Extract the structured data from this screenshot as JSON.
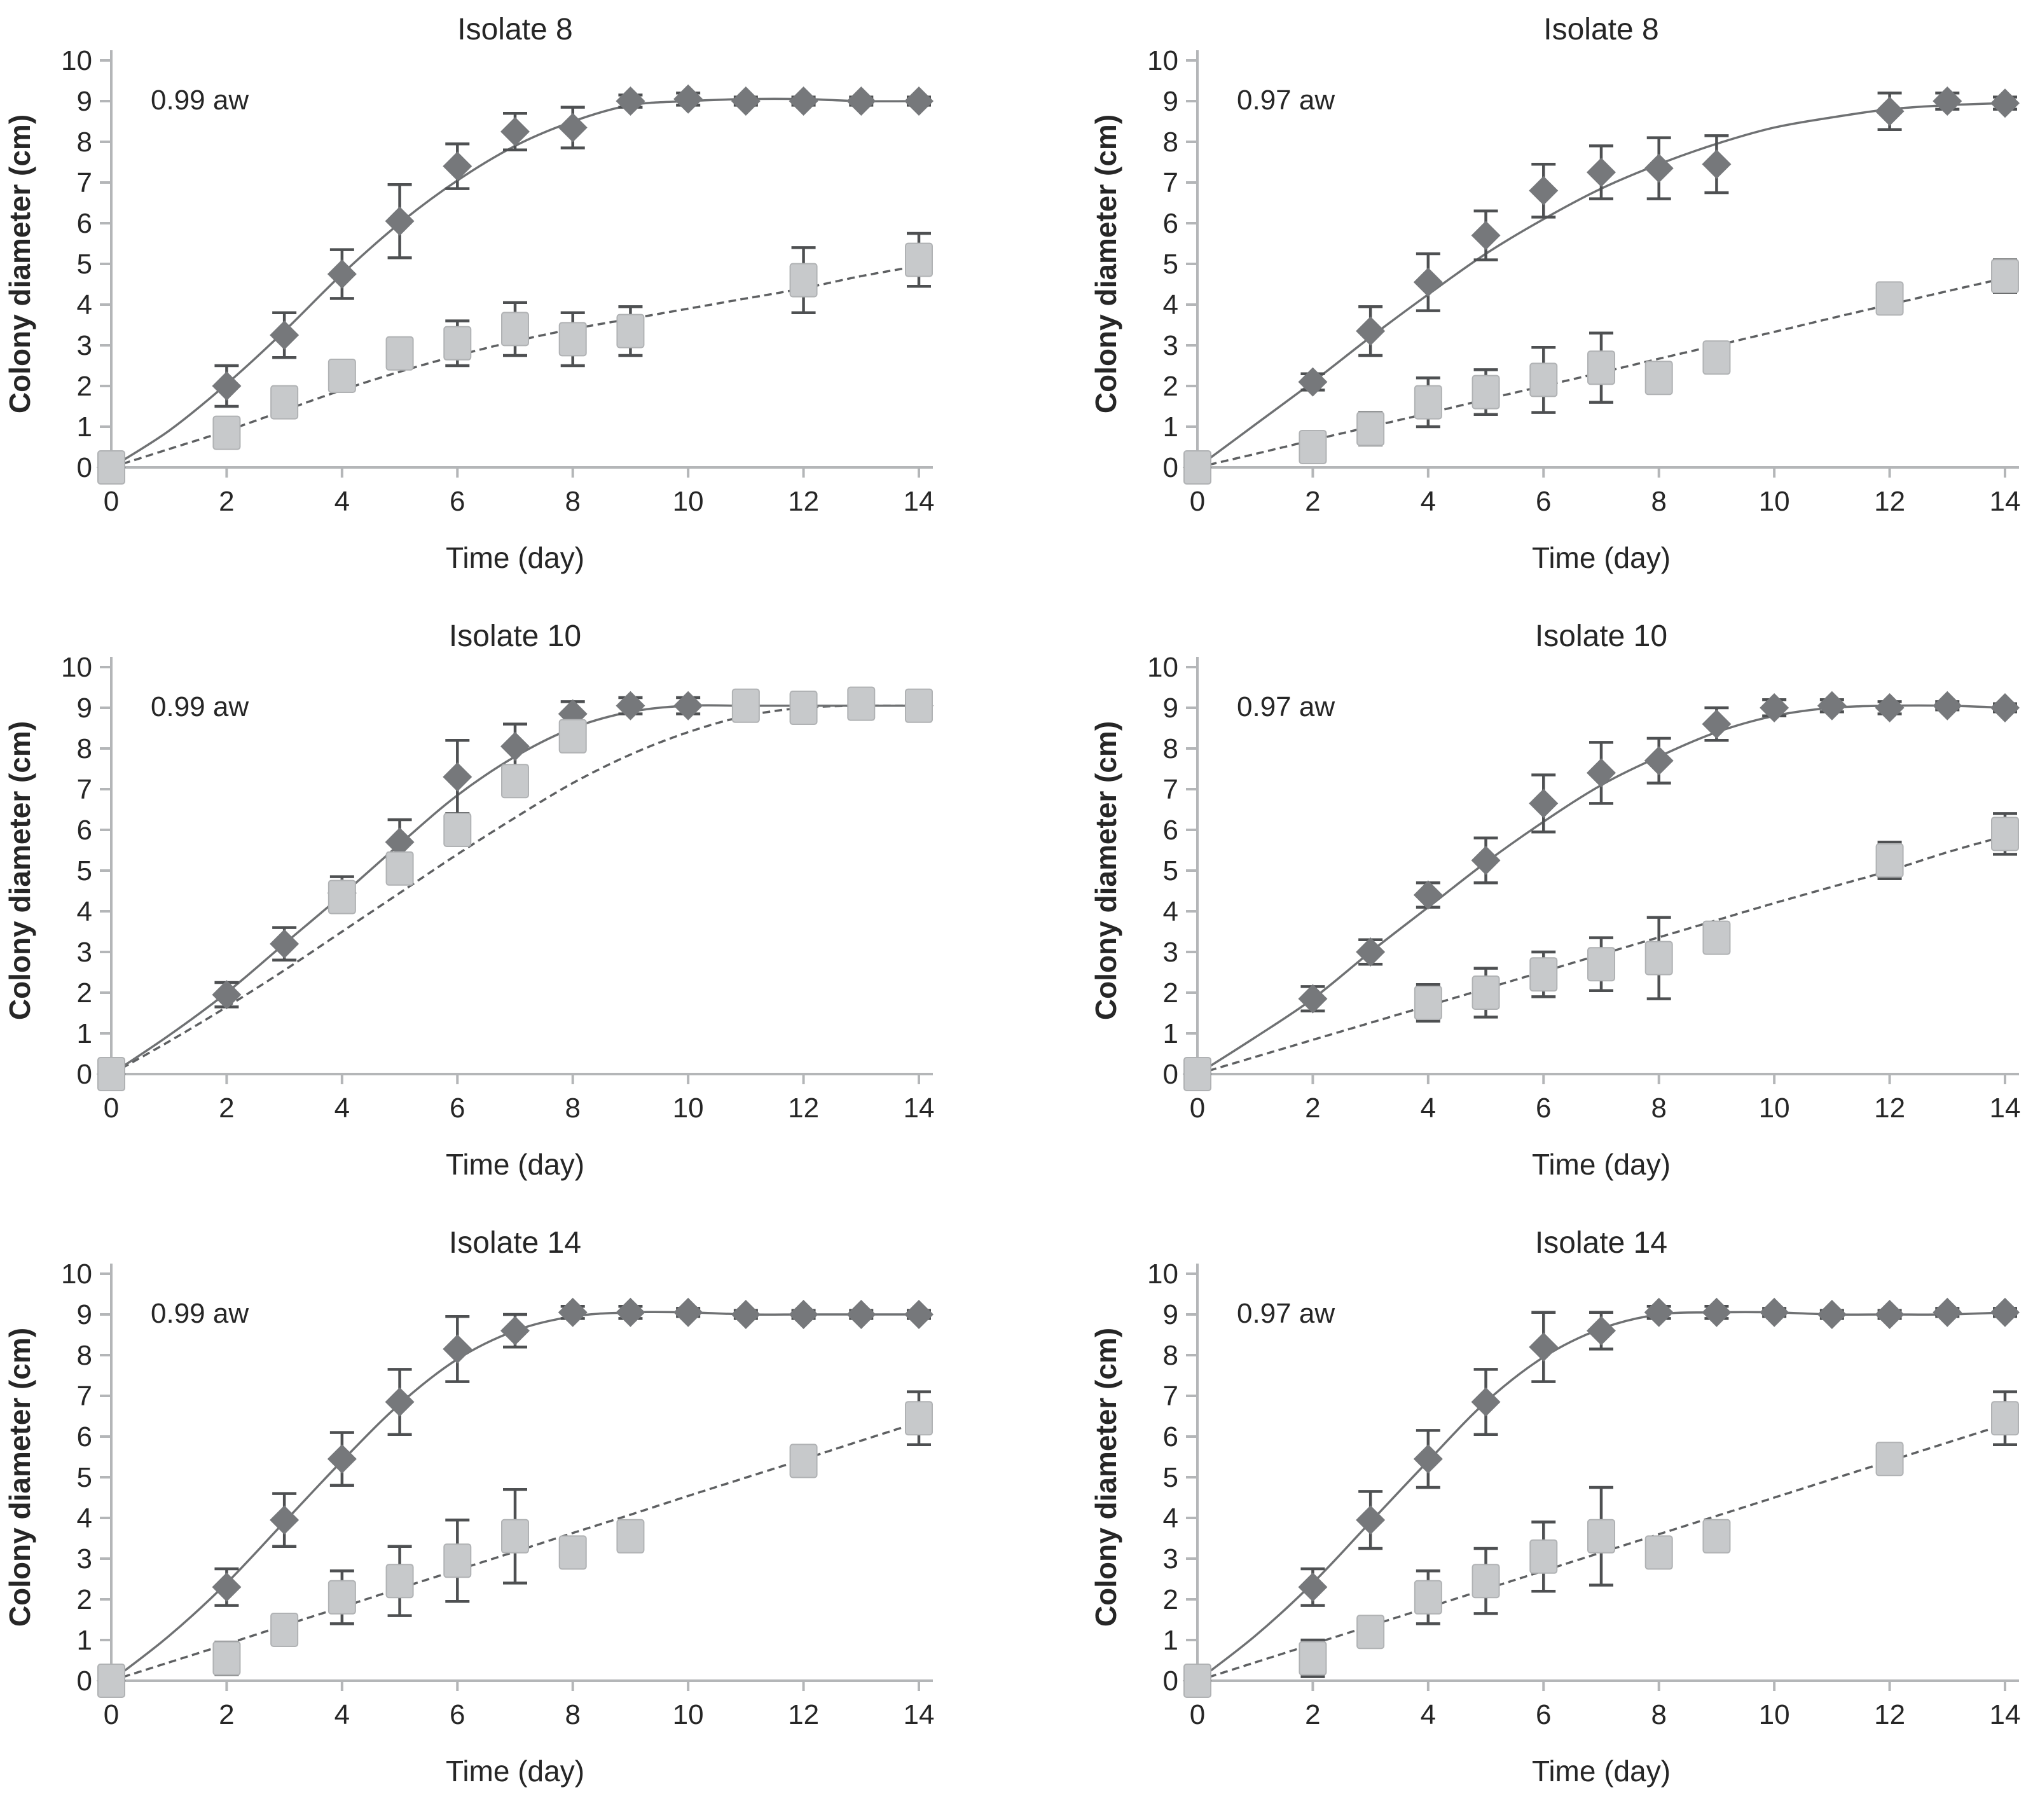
{
  "figure": {
    "x_ticks": [
      0,
      2,
      4,
      6,
      8,
      10,
      12,
      14
    ],
    "y_ticks": [
      0,
      1,
      2,
      3,
      4,
      5,
      6,
      7,
      8,
      9,
      10
    ]
  },
  "colors": {
    "diamond_fill": "#76787b",
    "square_fill": "#c7c9cb",
    "square_stroke": "#b0b2b4",
    "error_bar": "#4e5052",
    "fit_line_diamond": "#6f7173",
    "fit_line_square": "#5e6062",
    "axis": "#b4b6b8",
    "text": "#262626"
  },
  "chart_data": [
    {
      "type": "scatter",
      "title": "Isolate 8",
      "annotation": "0.99 aw",
      "xlabel": "Time (day)",
      "ylabel": "Colony diameter (cm)",
      "xlim": [
        0,
        14
      ],
      "ylim": [
        0,
        10
      ],
      "series": [
        {
          "name": "diamond-series",
          "marker": "diamond",
          "line": "solid",
          "x": [
            0,
            2,
            3,
            4,
            5,
            6,
            7,
            8,
            9,
            10,
            11,
            12,
            13,
            14
          ],
          "y": [
            0,
            2.0,
            3.25,
            4.75,
            6.05,
            7.4,
            8.25,
            8.35,
            9.0,
            9.05,
            9.0,
            9.0,
            9.0,
            9.0
          ],
          "err": [
            0,
            0.5,
            0.55,
            0.6,
            0.9,
            0.55,
            0.45,
            0.5,
            0.15,
            0.15,
            0.1,
            0.1,
            0.1,
            0.1
          ],
          "fit_x": [
            0,
            1,
            2,
            3,
            4,
            5,
            6,
            7,
            8,
            9,
            10,
            11,
            12,
            13,
            14
          ],
          "fit_y": [
            0,
            0.9,
            2.05,
            3.35,
            4.75,
            6.0,
            7.05,
            7.9,
            8.5,
            8.9,
            9.0,
            9.05,
            9.05,
            9.0,
            9.0
          ]
        },
        {
          "name": "square-series",
          "marker": "square",
          "line": "dashed",
          "x": [
            0,
            2,
            3,
            4,
            5,
            6,
            7,
            8,
            9,
            12,
            14
          ],
          "y": [
            0,
            0.85,
            1.6,
            2.25,
            2.8,
            3.05,
            3.4,
            3.15,
            3.35,
            4.6,
            5.1
          ],
          "err": [
            0,
            0.35,
            0.25,
            0.35,
            0.3,
            0.55,
            0.65,
            0.65,
            0.6,
            0.8,
            0.65
          ],
          "fit_x": [
            0,
            1,
            2,
            3,
            4,
            5,
            6,
            7,
            8,
            9,
            10,
            11,
            12,
            13,
            14
          ],
          "fit_y": [
            0,
            0.45,
            0.9,
            1.4,
            1.9,
            2.35,
            2.75,
            3.1,
            3.4,
            3.65,
            3.9,
            4.15,
            4.4,
            4.7,
            4.95
          ]
        }
      ]
    },
    {
      "type": "scatter",
      "title": "Isolate 8",
      "annotation": "0.97 aw",
      "xlabel": "Time (day)",
      "ylabel": "Colony diameter (cm)",
      "xlim": [
        0,
        14
      ],
      "ylim": [
        0,
        10
      ],
      "series": [
        {
          "name": "diamond-series",
          "marker": "diamond",
          "line": "solid",
          "x": [
            0,
            2,
            3,
            4,
            5,
            6,
            7,
            8,
            9,
            12,
            13,
            14
          ],
          "y": [
            0,
            2.1,
            3.35,
            4.55,
            5.7,
            6.8,
            7.25,
            7.35,
            7.45,
            8.75,
            9.0,
            8.95
          ],
          "err": [
            0,
            0.2,
            0.6,
            0.7,
            0.6,
            0.65,
            0.65,
            0.75,
            0.7,
            0.45,
            0.2,
            0.15
          ],
          "fit_x": [
            0,
            1,
            2,
            3,
            4,
            5,
            6,
            7,
            8,
            9,
            10,
            11,
            12,
            13,
            14
          ],
          "fit_y": [
            0,
            1.05,
            2.1,
            3.2,
            4.25,
            5.25,
            6.1,
            6.85,
            7.45,
            7.95,
            8.35,
            8.6,
            8.8,
            8.9,
            8.95
          ]
        },
        {
          "name": "square-series",
          "marker": "square",
          "line": "dashed",
          "x": [
            0,
            2,
            3,
            4,
            5,
            6,
            7,
            8,
            9,
            12,
            14
          ],
          "y": [
            0,
            0.5,
            0.95,
            1.6,
            1.85,
            2.15,
            2.45,
            2.2,
            2.7,
            4.15,
            4.7
          ],
          "err": [
            0,
            0.2,
            0.4,
            0.6,
            0.55,
            0.8,
            0.85,
            0.15,
            0.25,
            0.35,
            0.4
          ],
          "fit_x": [
            0,
            1,
            2,
            3,
            4,
            5,
            6,
            7,
            8,
            9,
            10,
            11,
            12,
            13,
            14
          ],
          "fit_y": [
            0,
            0.33,
            0.67,
            1.0,
            1.33,
            1.67,
            2.0,
            2.33,
            2.67,
            3.0,
            3.33,
            3.67,
            4.0,
            4.33,
            4.65
          ]
        }
      ]
    },
    {
      "type": "scatter",
      "title": "Isolate 10",
      "annotation": "0.99 aw",
      "xlabel": "Time (day)",
      "ylabel": "Colony diameter (cm)",
      "xlim": [
        0,
        14
      ],
      "ylim": [
        0,
        10
      ],
      "series": [
        {
          "name": "diamond-series",
          "marker": "diamond",
          "line": "solid",
          "x": [
            0,
            2,
            3,
            4,
            5,
            6,
            7,
            8,
            9,
            10,
            11,
            12,
            13,
            14
          ],
          "y": [
            0,
            1.95,
            3.2,
            4.45,
            5.7,
            7.3,
            8.05,
            8.85,
            9.05,
            9.05,
            9.05,
            9.05,
            9.05,
            9.05
          ],
          "err": [
            0,
            0.3,
            0.4,
            0.4,
            0.55,
            0.9,
            0.55,
            0.3,
            0.2,
            0.2,
            0.1,
            0.1,
            0.1,
            0.1
          ],
          "fit_x": [
            0,
            1,
            2,
            3,
            4,
            5,
            6,
            7,
            8,
            9,
            10,
            11,
            12,
            13,
            14
          ],
          "fit_y": [
            0,
            0.95,
            2.0,
            3.2,
            4.4,
            5.65,
            6.85,
            7.8,
            8.5,
            8.9,
            9.05,
            9.05,
            9.05,
            9.05,
            9.05
          ]
        },
        {
          "name": "square-series",
          "marker": "square",
          "line": "dashed",
          "x": [
            0,
            4,
            5,
            6,
            7,
            8,
            11,
            12,
            13,
            14
          ],
          "y": [
            0,
            4.35,
            5.05,
            6.0,
            7.2,
            8.3,
            9.05,
            9.0,
            9.1,
            9.05
          ],
          "err": [
            0,
            0.35,
            0.2,
            0.35,
            0.35,
            0.3,
            0.15,
            0.15,
            0.1,
            0.15
          ],
          "fit_x": [
            0,
            1,
            2,
            3,
            4,
            5,
            6,
            7,
            8,
            9,
            10,
            11,
            12,
            13,
            14
          ],
          "fit_y": [
            0,
            0.8,
            1.65,
            2.55,
            3.5,
            4.45,
            5.4,
            6.3,
            7.15,
            7.85,
            8.4,
            8.8,
            9.0,
            9.05,
            9.05
          ]
        }
      ]
    },
    {
      "type": "scatter",
      "title": "Isolate 10",
      "annotation": "0.97 aw",
      "xlabel": "Time (day)",
      "ylabel": "Colony diameter (cm)",
      "xlim": [
        0,
        14
      ],
      "ylim": [
        0,
        10
      ],
      "series": [
        {
          "name": "diamond-series",
          "marker": "diamond",
          "line": "solid",
          "x": [
            0,
            2,
            3,
            4,
            5,
            6,
            7,
            8,
            9,
            10,
            11,
            12,
            13,
            14
          ],
          "y": [
            0,
            1.85,
            3.0,
            4.4,
            5.25,
            6.65,
            7.4,
            7.7,
            8.6,
            9.0,
            9.05,
            9.0,
            9.05,
            9.0
          ],
          "err": [
            0,
            0.3,
            0.3,
            0.3,
            0.55,
            0.7,
            0.75,
            0.55,
            0.4,
            0.2,
            0.15,
            0.15,
            0.1,
            0.1
          ],
          "fit_x": [
            0,
            1,
            2,
            3,
            4,
            5,
            6,
            7,
            8,
            9,
            10,
            11,
            12,
            13,
            14
          ],
          "fit_y": [
            0,
            0.9,
            1.85,
            3.0,
            4.1,
            5.2,
            6.2,
            7.1,
            7.8,
            8.4,
            8.8,
            9.0,
            9.05,
            9.05,
            9.0
          ]
        },
        {
          "name": "square-series",
          "marker": "square",
          "line": "dashed",
          "x": [
            0,
            4,
            5,
            6,
            7,
            8,
            9,
            12,
            14
          ],
          "y": [
            0,
            1.75,
            2.0,
            2.45,
            2.7,
            2.85,
            3.35,
            5.25,
            5.9
          ],
          "err": [
            0,
            0.45,
            0.6,
            0.55,
            0.65,
            1.0,
            0.35,
            0.45,
            0.5
          ],
          "fit_x": [
            0,
            1,
            2,
            3,
            4,
            5,
            6,
            7,
            8,
            9,
            10,
            11,
            12,
            13,
            14
          ],
          "fit_y": [
            0,
            0.42,
            0.84,
            1.26,
            1.68,
            2.1,
            2.52,
            2.94,
            3.36,
            3.78,
            4.2,
            4.6,
            5.0,
            5.45,
            5.85
          ]
        }
      ]
    },
    {
      "type": "scatter",
      "title": "Isolate 14",
      "annotation": "0.99 aw",
      "xlabel": "Time (day)",
      "ylabel": "Colony diameter (cm)",
      "xlim": [
        0,
        14
      ],
      "ylim": [
        0,
        10
      ],
      "series": [
        {
          "name": "diamond-series",
          "marker": "diamond",
          "line": "solid",
          "x": [
            0,
            2,
            3,
            4,
            5,
            6,
            7,
            8,
            9,
            10,
            11,
            12,
            13,
            14
          ],
          "y": [
            0,
            2.3,
            3.95,
            5.45,
            6.85,
            8.15,
            8.6,
            9.05,
            9.05,
            9.05,
            9.0,
            9.0,
            9.0,
            9.0
          ],
          "err": [
            0,
            0.45,
            0.65,
            0.65,
            0.8,
            0.8,
            0.4,
            0.15,
            0.15,
            0.1,
            0.1,
            0.1,
            0.1,
            0.1
          ],
          "fit_x": [
            0,
            1,
            2,
            3,
            4,
            5,
            6,
            7,
            8,
            9,
            10,
            11,
            12,
            13,
            14
          ],
          "fit_y": [
            0,
            1.1,
            2.4,
            3.9,
            5.4,
            6.8,
            7.9,
            8.6,
            8.95,
            9.05,
            9.05,
            9.0,
            9.0,
            9.0,
            9.0
          ]
        },
        {
          "name": "square-series",
          "marker": "square",
          "line": "dashed",
          "x": [
            0,
            2,
            3,
            4,
            5,
            6,
            7,
            8,
            9,
            12,
            14
          ],
          "y": [
            0,
            0.55,
            1.25,
            2.05,
            2.45,
            2.95,
            3.55,
            3.15,
            3.55,
            5.4,
            6.45
          ],
          "err": [
            0,
            0.4,
            0.35,
            0.65,
            0.85,
            1.0,
            1.15,
            0.2,
            0.15,
            0.25,
            0.65
          ],
          "fit_x": [
            0,
            1,
            2,
            3,
            4,
            5,
            6,
            7,
            8,
            9,
            10,
            11,
            12,
            13,
            14
          ],
          "fit_y": [
            0,
            0.45,
            0.9,
            1.36,
            1.81,
            2.27,
            2.72,
            3.17,
            3.63,
            4.08,
            4.54,
            4.99,
            5.44,
            5.9,
            6.35
          ]
        }
      ]
    },
    {
      "type": "scatter",
      "title": "Isolate 14",
      "annotation": "0.97 aw",
      "xlabel": "Time (day)",
      "ylabel": "Colony diameter (cm)",
      "xlim": [
        0,
        14
      ],
      "ylim": [
        0,
        10
      ],
      "series": [
        {
          "name": "diamond-series",
          "marker": "diamond",
          "line": "solid",
          "x": [
            0,
            2,
            3,
            4,
            5,
            6,
            7,
            8,
            9,
            10,
            11,
            12,
            13,
            14
          ],
          "y": [
            0,
            2.3,
            3.95,
            5.45,
            6.85,
            8.2,
            8.6,
            9.05,
            9.05,
            9.05,
            9.0,
            9.0,
            9.05,
            9.05
          ],
          "err": [
            0,
            0.45,
            0.7,
            0.7,
            0.8,
            0.85,
            0.45,
            0.15,
            0.15,
            0.1,
            0.1,
            0.1,
            0.1,
            0.1
          ],
          "fit_x": [
            0,
            1,
            2,
            3,
            4,
            5,
            6,
            7,
            8,
            9,
            10,
            11,
            12,
            13,
            14
          ],
          "fit_y": [
            0,
            1.1,
            2.4,
            3.9,
            5.4,
            6.85,
            7.95,
            8.65,
            9.0,
            9.05,
            9.05,
            9.0,
            9.0,
            9.0,
            9.05
          ]
        },
        {
          "name": "square-series",
          "marker": "square",
          "line": "dashed",
          "x": [
            0,
            2,
            3,
            4,
            5,
            6,
            7,
            8,
            9,
            12,
            14
          ],
          "y": [
            0,
            0.55,
            1.2,
            2.05,
            2.45,
            3.05,
            3.55,
            3.15,
            3.55,
            5.45,
            6.45
          ],
          "err": [
            0,
            0.45,
            0.35,
            0.65,
            0.8,
            0.85,
            1.2,
            0.25,
            0.15,
            0.2,
            0.65
          ],
          "fit_x": [
            0,
            1,
            2,
            3,
            4,
            5,
            6,
            7,
            8,
            9,
            10,
            11,
            12,
            13,
            14
          ],
          "fit_y": [
            0,
            0.45,
            0.9,
            1.35,
            1.8,
            2.25,
            2.7,
            3.15,
            3.6,
            4.05,
            4.5,
            4.95,
            5.4,
            5.85,
            6.3
          ]
        }
      ]
    }
  ]
}
